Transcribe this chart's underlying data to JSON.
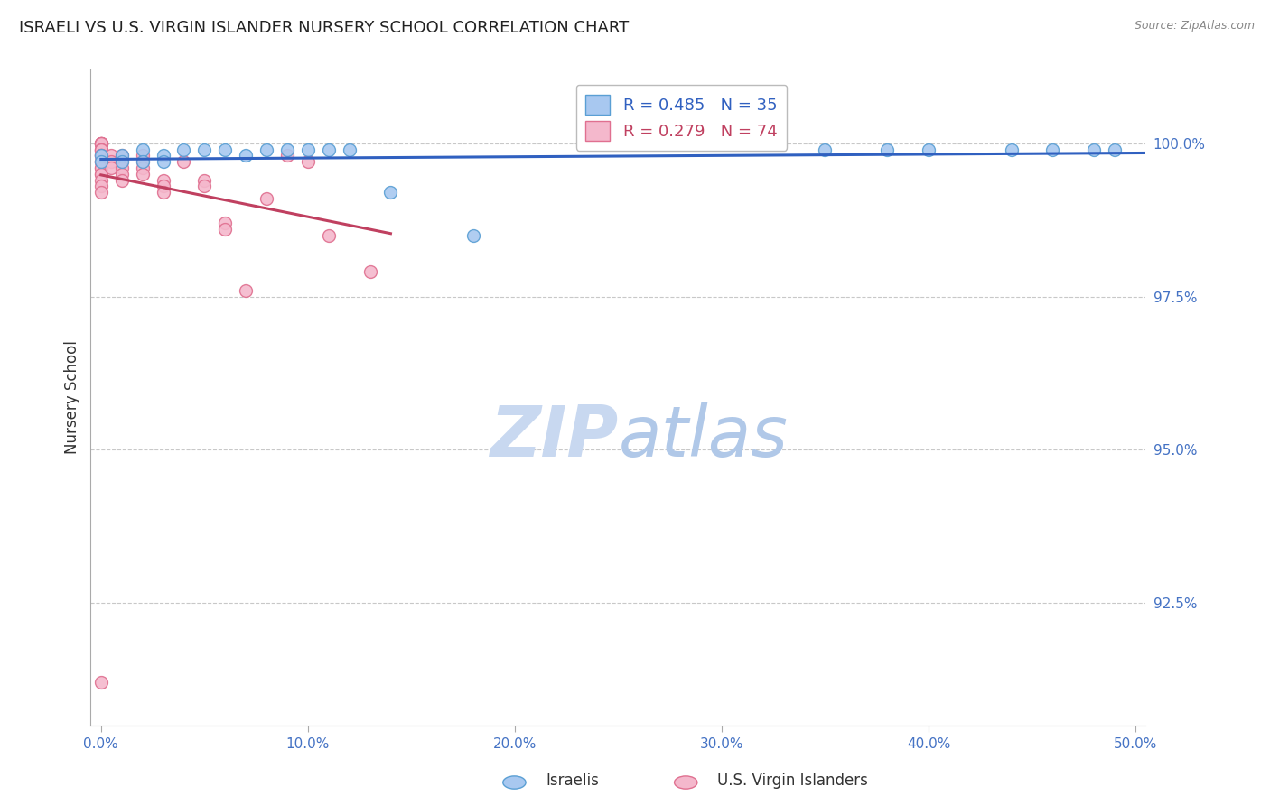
{
  "title": "ISRAELI VS U.S. VIRGIN ISLANDER NURSERY SCHOOL CORRELATION CHART",
  "source": "Source: ZipAtlas.com",
  "ylabel": "Nursery School",
  "xlabel_ticks": [
    "0.0%",
    "10.0%",
    "20.0%",
    "30.0%",
    "40.0%",
    "50.0%"
  ],
  "xlabel_vals": [
    0.0,
    0.1,
    0.2,
    0.3,
    0.4,
    0.5
  ],
  "ylabel_ticks": [
    "92.5%",
    "95.0%",
    "97.5%",
    "100.0%"
  ],
  "ylabel_vals": [
    0.925,
    0.95,
    0.975,
    1.0
  ],
  "xlim": [
    -0.005,
    0.505
  ],
  "ylim": [
    0.905,
    1.012
  ],
  "israeli_R": 0.485,
  "israeli_N": 35,
  "usvi_R": 0.279,
  "usvi_N": 74,
  "israeli_color": "#a8c8f0",
  "usvi_color": "#f4b8cc",
  "israeli_edge": "#5a9fd4",
  "usvi_edge": "#e07090",
  "trendline_israeli_color": "#3060c0",
  "trendline_usvi_color": "#c04060",
  "watermark_zip_color": "#c8d8f0",
  "watermark_atlas_color": "#b0c8e8",
  "background_color": "#ffffff",
  "title_color": "#222222",
  "axis_tick_color": "#4472c4",
  "grid_color": "#c8c8c8",
  "israeli_x": [
    0.0,
    0.0,
    0.01,
    0.01,
    0.02,
    0.02,
    0.03,
    0.03,
    0.04,
    0.05,
    0.06,
    0.07,
    0.08,
    0.09,
    0.1,
    0.11,
    0.12,
    0.14,
    0.18,
    0.35,
    0.38,
    0.4,
    0.44,
    0.46,
    0.48,
    0.49
  ],
  "israeli_y": [
    0.998,
    0.997,
    0.998,
    0.997,
    0.999,
    0.997,
    0.998,
    0.997,
    0.999,
    0.999,
    0.999,
    0.998,
    0.999,
    0.999,
    0.999,
    0.999,
    0.999,
    0.992,
    0.985,
    0.999,
    0.999,
    0.999,
    0.999,
    0.999,
    0.999,
    0.999
  ],
  "usvi_x": [
    0.0,
    0.0,
    0.0,
    0.0,
    0.0,
    0.0,
    0.0,
    0.0,
    0.0,
    0.0,
    0.0,
    0.0,
    0.0,
    0.0,
    0.0,
    0.0,
    0.0,
    0.0,
    0.0,
    0.0,
    0.0,
    0.0,
    0.005,
    0.005,
    0.005,
    0.01,
    0.01,
    0.01,
    0.01,
    0.01,
    0.02,
    0.02,
    0.02,
    0.02,
    0.03,
    0.03,
    0.03,
    0.04,
    0.05,
    0.05,
    0.06,
    0.06,
    0.07,
    0.08,
    0.09,
    0.1,
    0.11,
    0.13
  ],
  "usvi_y": [
    1.0,
    1.0,
    1.0,
    1.0,
    1.0,
    1.0,
    0.999,
    0.999,
    0.999,
    0.998,
    0.998,
    0.998,
    0.997,
    0.997,
    0.997,
    0.996,
    0.996,
    0.995,
    0.995,
    0.994,
    0.993,
    0.992,
    0.998,
    0.997,
    0.996,
    0.998,
    0.997,
    0.996,
    0.995,
    0.994,
    0.998,
    0.997,
    0.996,
    0.995,
    0.994,
    0.993,
    0.992,
    0.997,
    0.994,
    0.993,
    0.987,
    0.986,
    0.976,
    0.991,
    0.998,
    0.997,
    0.985,
    0.979
  ],
  "usvi_outlier_x": [
    0.0
  ],
  "usvi_outlier_y": [
    0.912
  ],
  "marker_size": 100,
  "marker_linewidth": 1.0
}
